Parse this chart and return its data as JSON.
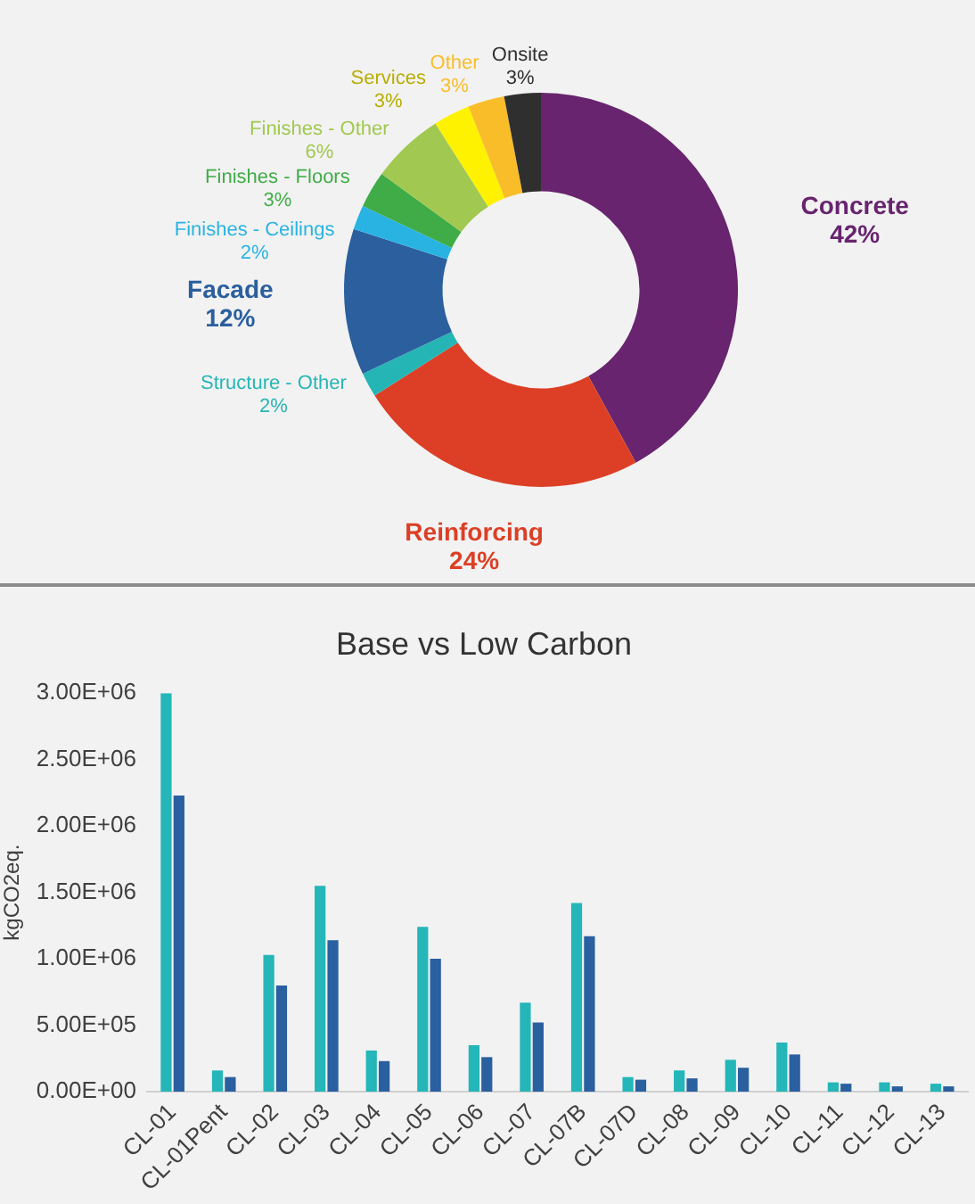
{
  "chart_data": [
    {
      "type": "donut",
      "categories": [
        "Concrete",
        "Reinforcing",
        "Structure - Other",
        "Facade",
        "Finishes - Ceilings",
        "Finishes - Floors",
        "Finishes - Other",
        "Services",
        "Other",
        "Onsite"
      ],
      "values": [
        42,
        24,
        2,
        12,
        2,
        3,
        6,
        3,
        3,
        3
      ],
      "value_labels": [
        "42%",
        "24%",
        "2%",
        "12%",
        "2%",
        "3%",
        "6%",
        "3%",
        "3%",
        "3%"
      ],
      "colors": [
        "#68246f",
        "#dc3f26",
        "#26b5b5",
        "#2b5f9e",
        "#29b3e3",
        "#3fac47",
        "#a1c850",
        "#fff200",
        "#f9bd2a",
        "#2f2f2f"
      ],
      "legend": false
    },
    {
      "type": "bar",
      "title": "Base vs Low Carbon",
      "ylabel": "kgCO2eq.",
      "categories": [
        "CL-01",
        "CL-01Pent",
        "CL-02",
        "CL-03",
        "CL-04",
        "CL-05",
        "CL-06",
        "CL-07",
        "CL-07B",
        "CL-07D",
        "CL-08",
        "CL-09",
        "CL-10",
        "CL-11",
        "CL-12",
        "CL-13"
      ],
      "series": [
        {
          "color": "#24b6b8",
          "values": [
            3000000,
            160000,
            1030000,
            1550000,
            310000,
            1240000,
            350000,
            670000,
            1420000,
            110000,
            160000,
            240000,
            370000,
            70000,
            70000,
            60000
          ]
        },
        {
          "color": "#2a5fa0",
          "values": [
            2230000,
            110000,
            800000,
            1140000,
            230000,
            1000000,
            260000,
            520000,
            1170000,
            90000,
            100000,
            180000,
            280000,
            60000,
            40000,
            40000
          ]
        }
      ],
      "ylim": [
        0,
        3000000
      ],
      "yticks": [
        {
          "value": 0,
          "label": "0.00E+00"
        },
        {
          "value": 500000,
          "label": "5.00E+05"
        },
        {
          "value": 1000000,
          "label": "1.00E+06"
        },
        {
          "value": 1500000,
          "label": "1.50E+06"
        },
        {
          "value": 2000000,
          "label": "2.00E+06"
        },
        {
          "value": 2500000,
          "label": "2.50E+06"
        },
        {
          "value": 3000000,
          "label": "3.00E+06"
        }
      ],
      "grid": false,
      "legend": false
    }
  ]
}
